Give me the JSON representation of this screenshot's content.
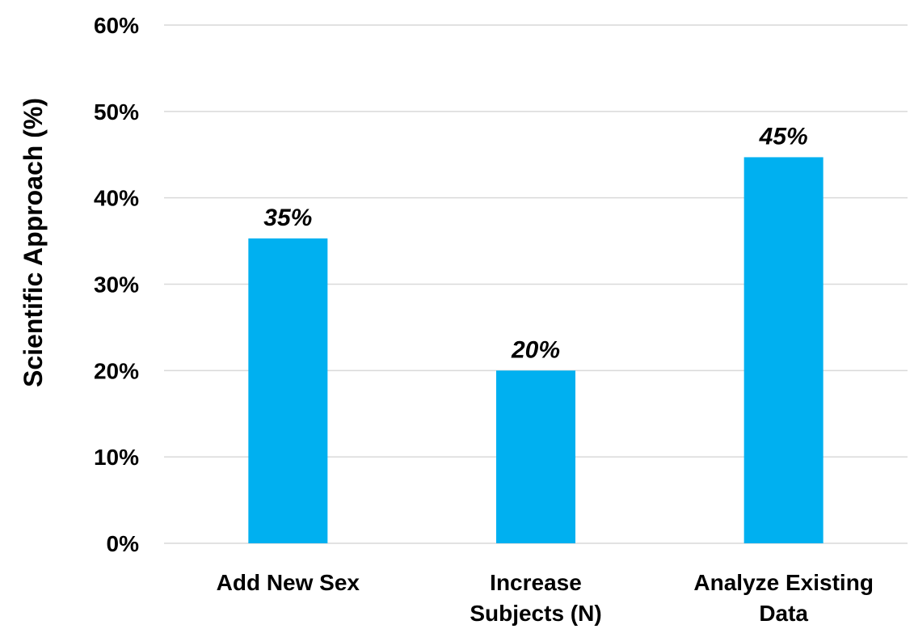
{
  "chart_data": {
    "type": "bar",
    "title": "",
    "xlabel": "",
    "ylabel": "Scientific Approach (%)",
    "categories": [
      [
        "Add New Sex"
      ],
      [
        "Increase",
        "Subjects (N)"
      ],
      [
        "Analyze Existing",
        "Data"
      ]
    ],
    "values": [
      35.3,
      20.0,
      44.7
    ],
    "data_labels": [
      "35%",
      "20%",
      "45%"
    ],
    "ylim": [
      0,
      60
    ],
    "yticks": [
      0,
      10,
      20,
      30,
      40,
      50,
      60
    ],
    "ytick_labels": [
      "0%",
      "10%",
      "20%",
      "30%",
      "40%",
      "50%",
      "60%"
    ],
    "grid": true,
    "colors": {
      "bar": "#00B0F0",
      "grid": "#D9D9D9",
      "text": "#000000"
    }
  }
}
